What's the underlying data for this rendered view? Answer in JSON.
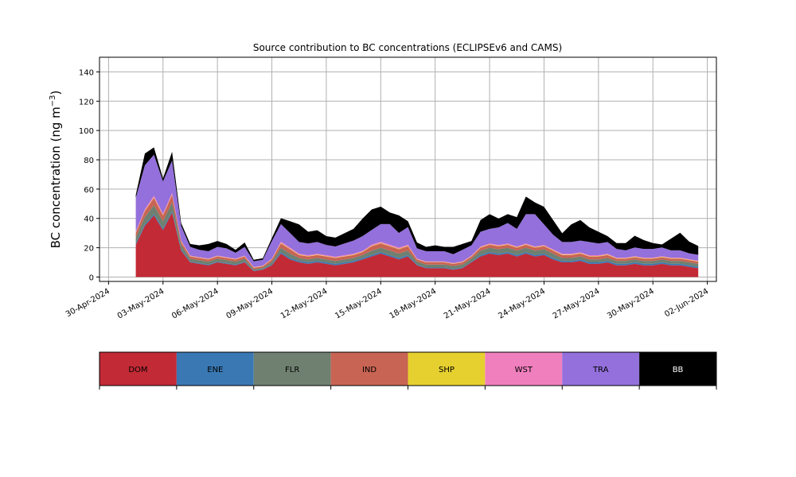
{
  "chart_data": {
    "type": "area",
    "stacked": true,
    "title": "Source contribution to BC concentrations (ECLIPSEv6 and CAMS)",
    "xlabel": "",
    "ylabel_main": "BC concentration (ng m",
    "ylabel_sup": "−3",
    "ylabel_close": ")",
    "xlim": [
      "2024-04-29T12:00",
      "2024-06-02T12:00"
    ],
    "ylim": [
      -3,
      150
    ],
    "yticks": [
      0,
      20,
      40,
      60,
      80,
      100,
      120,
      140
    ],
    "xticks": [
      {
        "date": "2024-04-30",
        "label": "30-Apr-2024"
      },
      {
        "date": "2024-05-03",
        "label": "03-May-2024"
      },
      {
        "date": "2024-05-06",
        "label": "06-May-2024"
      },
      {
        "date": "2024-05-09",
        "label": "09-May-2024"
      },
      {
        "date": "2024-05-12",
        "label": "12-May-2024"
      },
      {
        "date": "2024-05-15",
        "label": "15-May-2024"
      },
      {
        "date": "2024-05-18",
        "label": "18-May-2024"
      },
      {
        "date": "2024-05-21",
        "label": "21-May-2024"
      },
      {
        "date": "2024-05-24",
        "label": "24-May-2024"
      },
      {
        "date": "2024-05-27",
        "label": "27-May-2024"
      },
      {
        "date": "2024-05-30",
        "label": "30-May-2024"
      },
      {
        "date": "2024-06-02",
        "label": "02-Jun-2024"
      }
    ],
    "grid": true,
    "legend_placement": "below chart, color bar",
    "series_colors": {
      "DOM": "#c22a36",
      "ENE": "#3a78b3",
      "FLR": "#6f8070",
      "IND": "#c86454",
      "SHP": "#e6d02f",
      "WST": "#f07fbe",
      "TRA": "#9370db",
      "BB": "#000000"
    },
    "legend": [
      {
        "name": "DOM",
        "color": "#c22a36",
        "text_color": "#000000"
      },
      {
        "name": "ENE",
        "color": "#3a78b3",
        "text_color": "#000000"
      },
      {
        "name": "FLR",
        "color": "#6f8070",
        "text_color": "#000000"
      },
      {
        "name": "IND",
        "color": "#c86454",
        "text_color": "#000000"
      },
      {
        "name": "SHP",
        "color": "#e6d02f",
        "text_color": "#000000"
      },
      {
        "name": "WST",
        "color": "#f07fbe",
        "text_color": "#000000"
      },
      {
        "name": "TRA",
        "color": "#9370db",
        "text_color": "#000000"
      },
      {
        "name": "BB",
        "color": "#000000",
        "text_color": "#ffffff"
      }
    ],
    "x": [
      "2024-05-01T12:00",
      "2024-05-02T00:00",
      "2024-05-02T12:00",
      "2024-05-03T00:00",
      "2024-05-03T12:00",
      "2024-05-04T00:00",
      "2024-05-04T12:00",
      "2024-05-05T00:00",
      "2024-05-05T12:00",
      "2024-05-06T00:00",
      "2024-05-06T12:00",
      "2024-05-07T00:00",
      "2024-05-07T12:00",
      "2024-05-08T00:00",
      "2024-05-08T12:00",
      "2024-05-09T00:00",
      "2024-05-09T12:00",
      "2024-05-10T00:00",
      "2024-05-10T12:00",
      "2024-05-11T00:00",
      "2024-05-11T12:00",
      "2024-05-12T00:00",
      "2024-05-12T12:00",
      "2024-05-13T00:00",
      "2024-05-13T12:00",
      "2024-05-14T00:00",
      "2024-05-14T12:00",
      "2024-05-15T00:00",
      "2024-05-15T12:00",
      "2024-05-16T00:00",
      "2024-05-16T12:00",
      "2024-05-17T00:00",
      "2024-05-17T12:00",
      "2024-05-18T00:00",
      "2024-05-18T12:00",
      "2024-05-19T00:00",
      "2024-05-19T12:00",
      "2024-05-20T00:00",
      "2024-05-20T12:00",
      "2024-05-21T00:00",
      "2024-05-21T12:00",
      "2024-05-22T00:00",
      "2024-05-22T12:00",
      "2024-05-23T00:00",
      "2024-05-23T12:00",
      "2024-05-24T00:00",
      "2024-05-24T12:00",
      "2024-05-25T00:00",
      "2024-05-25T12:00",
      "2024-05-26T00:00",
      "2024-05-26T12:00",
      "2024-05-27T00:00",
      "2024-05-27T12:00",
      "2024-05-28T00:00",
      "2024-05-28T12:00",
      "2024-05-29T00:00",
      "2024-05-29T12:00",
      "2024-05-30T00:00",
      "2024-05-30T12:00",
      "2024-05-31T00:00",
      "2024-05-31T12:00",
      "2024-06-01T00:00",
      "2024-06-01T12:00"
    ],
    "series": [
      {
        "name": "DOM",
        "values": [
          22,
          35,
          42,
          32,
          44,
          18,
          10,
          9,
          8,
          10,
          9,
          8,
          10,
          4,
          5,
          8,
          16,
          12,
          10,
          9,
          10,
          9,
          8,
          9,
          10,
          12,
          14,
          16,
          14,
          12,
          14,
          8,
          6,
          6,
          6,
          5,
          6,
          10,
          14,
          16,
          15,
          16,
          14,
          16,
          14,
          15,
          12,
          10,
          10,
          11,
          9,
          9,
          10,
          8,
          8,
          9,
          8,
          8,
          9,
          8,
          8,
          7,
          6
        ]
      },
      {
        "name": "ENE",
        "values": [
          1,
          1,
          1,
          1,
          1,
          1,
          0.5,
          0.5,
          0.5,
          0.5,
          0.5,
          0.5,
          0.5,
          0.3,
          0.3,
          0.5,
          1,
          1,
          1,
          1,
          1,
          1,
          1,
          1,
          1,
          1,
          1,
          1,
          1,
          1,
          1,
          0.5,
          0.5,
          0.5,
          0.5,
          0.5,
          0.5,
          0.5,
          1,
          1,
          1,
          1,
          1,
          1,
          1,
          1,
          1,
          1,
          1,
          1,
          1,
          1,
          1,
          1,
          1,
          1,
          1,
          1,
          1,
          1,
          1,
          1,
          1
        ]
      },
      {
        "name": "FLR",
        "values": [
          4,
          5,
          6,
          5,
          6,
          3,
          2,
          2,
          2,
          2,
          2,
          2,
          2,
          1,
          1,
          2,
          3,
          3,
          2,
          2,
          2,
          2,
          2,
          2,
          2,
          2,
          3,
          3,
          3,
          3,
          3,
          2,
          2,
          2,
          2,
          2,
          2,
          2,
          3,
          3,
          3,
          3,
          3,
          3,
          3,
          3,
          3,
          2,
          2,
          2,
          2,
          2,
          2,
          2,
          2,
          2,
          2,
          2,
          2,
          2,
          2,
          2,
          2
        ]
      },
      {
        "name": "IND",
        "values": [
          3,
          4,
          5,
          4,
          5,
          2,
          1.5,
          1.5,
          1.5,
          1.5,
          1.5,
          1.5,
          1.5,
          1,
          1,
          1.5,
          3,
          3,
          2,
          2,
          2,
          2,
          2,
          2,
          2,
          2,
          3,
          3,
          3,
          3,
          3,
          1.5,
          1.5,
          1.5,
          1.5,
          1.5,
          1.5,
          1.5,
          2,
          2,
          2,
          2,
          2,
          2,
          2,
          2,
          2,
          2,
          2,
          2,
          2,
          2,
          2,
          1.5,
          1.5,
          1.5,
          1.5,
          1.5,
          1.5,
          1.5,
          1.5,
          1.5,
          1.5
        ]
      },
      {
        "name": "SHP",
        "values": [
          0.3,
          0.3,
          0.3,
          0.3,
          0.3,
          0.3,
          0.2,
          0.2,
          0.2,
          0.2,
          0.2,
          0.2,
          0.2,
          0.2,
          0.2,
          0.2,
          0.3,
          0.3,
          0.3,
          0.3,
          0.3,
          0.3,
          0.3,
          0.3,
          0.3,
          0.3,
          0.3,
          0.3,
          0.3,
          0.3,
          0.3,
          0.2,
          0.2,
          0.2,
          0.2,
          0.2,
          0.2,
          0.2,
          0.3,
          0.3,
          0.3,
          0.3,
          0.3,
          0.3,
          0.3,
          0.3,
          0.3,
          0.3,
          0.3,
          0.3,
          0.3,
          0.3,
          0.3,
          0.3,
          0.3,
          0.3,
          0.3,
          0.3,
          0.3,
          0.3,
          0.3,
          0.3,
          0.3
        ]
      },
      {
        "name": "WST",
        "values": [
          0.8,
          1,
          1.2,
          1,
          1.2,
          0.6,
          0.4,
          0.4,
          0.4,
          0.4,
          0.4,
          0.4,
          0.4,
          0.3,
          0.3,
          0.4,
          0.8,
          0.8,
          0.6,
          0.6,
          0.6,
          0.6,
          0.6,
          0.6,
          0.6,
          0.6,
          0.8,
          0.8,
          0.8,
          0.8,
          0.8,
          0.4,
          0.4,
          0.4,
          0.4,
          0.4,
          0.4,
          0.4,
          0.6,
          0.6,
          0.6,
          0.6,
          0.6,
          0.6,
          0.6,
          0.6,
          0.6,
          0.6,
          0.6,
          0.6,
          0.6,
          0.6,
          0.6,
          0.4,
          0.4,
          0.4,
          0.4,
          0.4,
          0.4,
          0.4,
          0.4,
          0.4,
          0.4
        ]
      },
      {
        "name": "TRA",
        "values": [
          23,
          30,
          28,
          22,
          22,
          10,
          6,
          5,
          5,
          6,
          6,
          4,
          6,
          4,
          4,
          12,
          12,
          10,
          8,
          8,
          8,
          7,
          7,
          8,
          9,
          10,
          10,
          12,
          14,
          10,
          12,
          7,
          7,
          7,
          7,
          6,
          8,
          7,
          10,
          10,
          12,
          14,
          12,
          20,
          22,
          14,
          10,
          8,
          8,
          8,
          9,
          8,
          8,
          6,
          5,
          6,
          6,
          6,
          6,
          5,
          5,
          4,
          4
        ]
      },
      {
        "name": "BB",
        "values": [
          2,
          8,
          5,
          2,
          6,
          2,
          2,
          3,
          5,
          4,
          3,
          2,
          3,
          1,
          1,
          2,
          4,
          8,
          12,
          8,
          8,
          6,
          6,
          7,
          8,
          12,
          14,
          12,
          8,
          12,
          4,
          4,
          3,
          4,
          3,
          5,
          4,
          3,
          8,
          10,
          6,
          6,
          8,
          12,
          8,
          12,
          10,
          6,
          12,
          14,
          10,
          8,
          4,
          4,
          5,
          8,
          6,
          4,
          2,
          8,
          12,
          8,
          6
        ]
      }
    ]
  }
}
